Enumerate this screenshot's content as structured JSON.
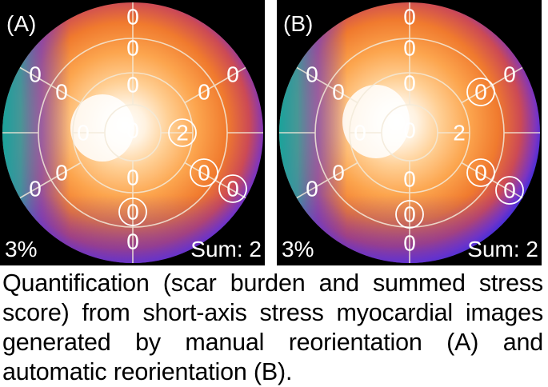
{
  "panels": [
    {
      "id": "a",
      "label": "(A)",
      "burden": "3%",
      "sum": "Sum: 2",
      "segments": {
        "outer": [
          "0",
          "0",
          "0",
          "0",
          "0",
          "0"
        ],
        "mid": [
          "0",
          "0",
          "0",
          "0",
          "0",
          "0"
        ],
        "inner": [
          "0",
          "2",
          "0",
          "0"
        ],
        "apex": "0"
      }
    },
    {
      "id": "b",
      "label": "(B)",
      "burden": "3%",
      "sum": "Sum: 2",
      "segments": {
        "outer": [
          "0",
          "0",
          "0",
          "0",
          "0",
          "0"
        ],
        "mid": [
          "0",
          "0",
          "0",
          "0",
          "0",
          "0"
        ],
        "inner": [
          "0",
          "2",
          "0",
          "0"
        ],
        "apex": "0"
      }
    }
  ],
  "caption": "Quantification (scar burden and summed stress score) from short-axis stress myocardial images generated by manual reorientation (A) and automatic reorientation (B)."
}
